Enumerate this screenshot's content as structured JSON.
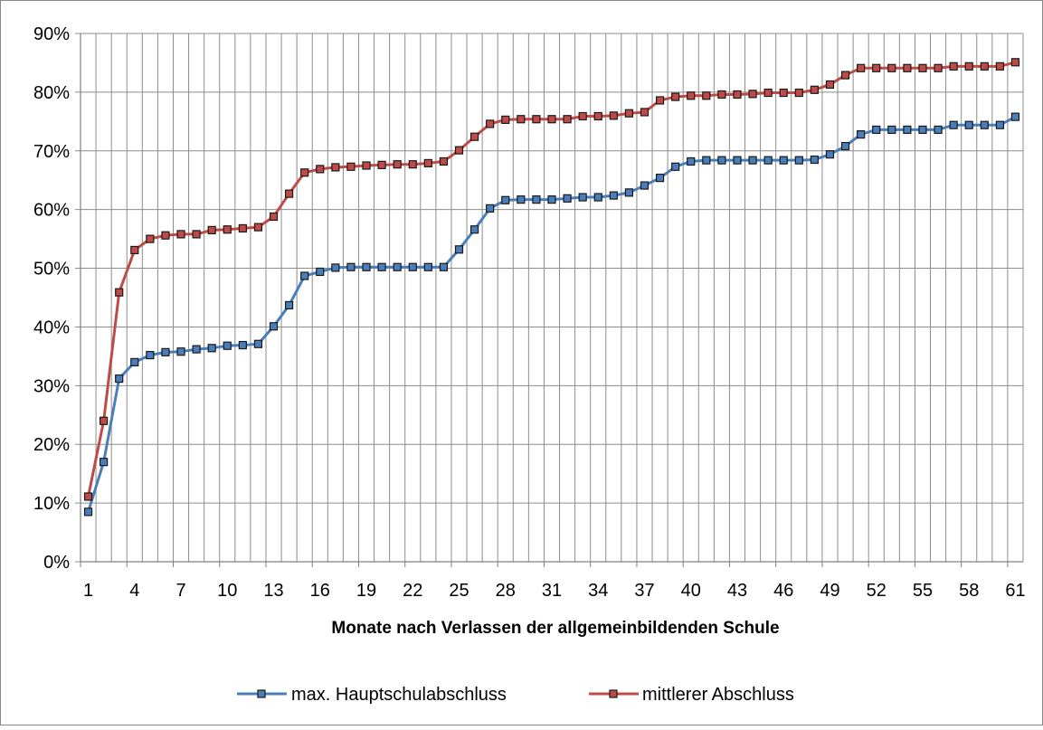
{
  "chart_data": {
    "type": "line",
    "title": "",
    "xlabel": "Monate nach Verlassen der allgemeinbildenden Schule",
    "ylabel": "",
    "x": [
      1,
      2,
      3,
      4,
      5,
      6,
      7,
      8,
      9,
      10,
      11,
      12,
      13,
      14,
      15,
      16,
      17,
      18,
      19,
      20,
      21,
      22,
      23,
      24,
      25,
      26,
      27,
      28,
      29,
      30,
      31,
      32,
      33,
      34,
      35,
      36,
      37,
      38,
      39,
      40,
      41,
      42,
      43,
      44,
      45,
      46,
      47,
      48,
      49,
      50,
      51,
      52,
      53,
      54,
      55,
      56,
      57,
      58,
      59,
      60,
      61
    ],
    "x_tick_labels": [
      "1",
      "4",
      "7",
      "10",
      "13",
      "16",
      "19",
      "22",
      "25",
      "28",
      "31",
      "34",
      "37",
      "40",
      "43",
      "46",
      "49",
      "52",
      "55",
      "58",
      "61"
    ],
    "ylim": [
      0,
      90
    ],
    "y_tick_labels": [
      "0%",
      "10%",
      "20%",
      "30%",
      "40%",
      "50%",
      "60%",
      "70%",
      "80%",
      "90%"
    ],
    "y_unit": "%",
    "grid": true,
    "legend_position": "bottom",
    "series": [
      {
        "name": "max. Hauptschulabschluss",
        "color": "#4a7ebb",
        "values": [
          8.5,
          17,
          31.2,
          34,
          35.2,
          35.7,
          35.8,
          36.2,
          36.4,
          36.8,
          36.9,
          37.1,
          40.1,
          43.7,
          48.7,
          49.4,
          50.1,
          50.2,
          50.2,
          50.2,
          50.2,
          50.2,
          50.2,
          50.2,
          53.2,
          56.6,
          60.2,
          61.6,
          61.7,
          61.7,
          61.7,
          61.9,
          62.1,
          62.1,
          62.4,
          62.9,
          64.1,
          65.4,
          67.3,
          68.2,
          68.4,
          68.4,
          68.4,
          68.4,
          68.4,
          68.4,
          68.4,
          68.5,
          69.4,
          70.8,
          72.8,
          73.6,
          73.6,
          73.6,
          73.6,
          73.6,
          74.4,
          74.4,
          74.4,
          74.4,
          75.8
        ]
      },
      {
        "name": "mittlerer Abschluss",
        "color": "#be4b48",
        "values": [
          11.1,
          24,
          45.9,
          53.1,
          55,
          55.6,
          55.8,
          55.8,
          56.5,
          56.6,
          56.8,
          57,
          58.8,
          62.7,
          66.3,
          66.9,
          67.2,
          67.3,
          67.5,
          67.6,
          67.7,
          67.7,
          67.9,
          68.2,
          70.1,
          72.4,
          74.6,
          75.3,
          75.4,
          75.4,
          75.4,
          75.4,
          75.9,
          75.9,
          76,
          76.4,
          76.6,
          78.6,
          79.2,
          79.4,
          79.4,
          79.6,
          79.6,
          79.7,
          79.9,
          79.9,
          79.9,
          80.4,
          81.3,
          82.9,
          84.1,
          84.1,
          84.1,
          84.1,
          84.1,
          84.1,
          84.4,
          84.4,
          84.4,
          84.4,
          85.1
        ]
      }
    ]
  }
}
